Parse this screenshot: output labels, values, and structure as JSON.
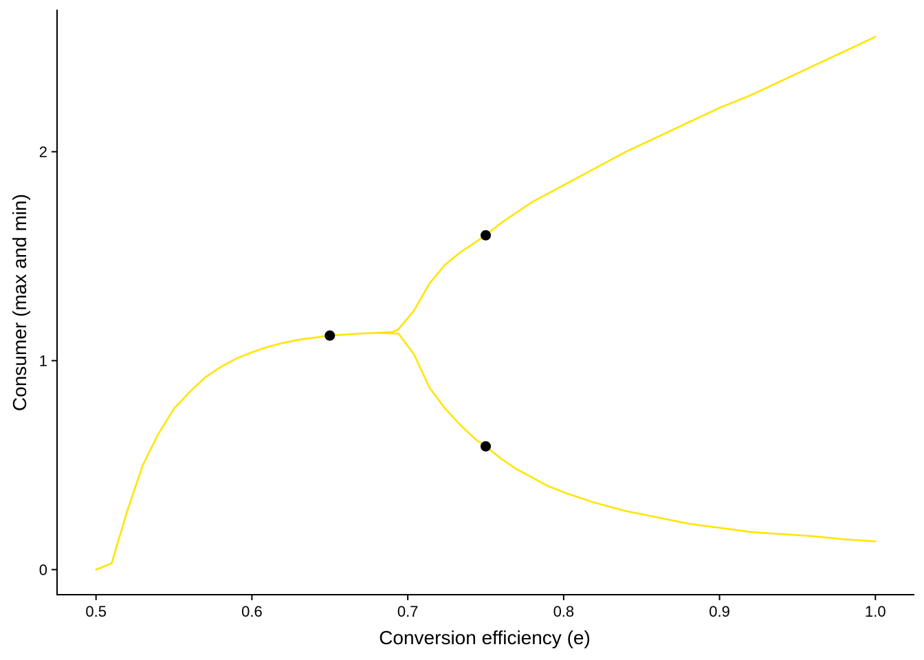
{
  "chart_data": {
    "type": "line",
    "title": "",
    "xlabel": "Conversion efficiency (e)",
    "ylabel": "Consumer (max and min)",
    "xlim": [
      0.475,
      1.025
    ],
    "ylim": [
      -0.12,
      2.68
    ],
    "xticks": [
      0.5,
      0.6,
      0.7,
      0.8,
      0.9,
      1.0
    ],
    "xtick_labels": [
      "0.5",
      "0.6",
      "0.7",
      "0.8",
      "0.9",
      "1.0"
    ],
    "yticks": [
      0,
      1,
      2
    ],
    "ytick_labels": [
      "0",
      "1",
      "2"
    ],
    "grid": false,
    "legend": "none",
    "line_color": "#FFE500",
    "point_color": "#000000",
    "series": [
      {
        "x": [
          0.5,
          0.51,
          0.52,
          0.53,
          0.54,
          0.55,
          0.56,
          0.57,
          0.58,
          0.59,
          0.6,
          0.61,
          0.62,
          0.63,
          0.64,
          0.65,
          0.66,
          0.67,
          0.68,
          0.69,
          0.694,
          0.704,
          0.714,
          0.724,
          0.734,
          0.744,
          0.75,
          0.76,
          0.77,
          0.78,
          0.79,
          0.8,
          0.82,
          0.84,
          0.86,
          0.88,
          0.9,
          0.92,
          0.94,
          0.96,
          0.98,
          1.0
        ],
        "values": [
          0.0,
          0.03,
          0.28,
          0.5,
          0.65,
          0.77,
          0.85,
          0.92,
          0.97,
          1.01,
          1.04,
          1.065,
          1.085,
          1.1,
          1.11,
          1.12,
          1.125,
          1.13,
          1.133,
          1.137,
          1.15,
          1.24,
          1.37,
          1.46,
          1.52,
          1.57,
          1.6,
          1.66,
          1.71,
          1.76,
          1.8,
          1.84,
          1.92,
          2.0,
          2.07,
          2.14,
          2.21,
          2.27,
          2.34,
          2.41,
          2.48,
          2.55
        ]
      },
      {
        "x": [
          0.68,
          0.69,
          0.694,
          0.704,
          0.714,
          0.724,
          0.734,
          0.744,
          0.75,
          0.76,
          0.77,
          0.78,
          0.79,
          0.8,
          0.82,
          0.84,
          0.86,
          0.88,
          0.9,
          0.92,
          0.94,
          0.96,
          0.98,
          1.0
        ],
        "values": [
          1.133,
          1.13,
          1.13,
          1.03,
          0.87,
          0.77,
          0.69,
          0.62,
          0.59,
          0.53,
          0.48,
          0.44,
          0.4,
          0.37,
          0.32,
          0.28,
          0.25,
          0.22,
          0.2,
          0.18,
          0.17,
          0.16,
          0.145,
          0.135
        ]
      }
    ],
    "points": [
      {
        "x": 0.65,
        "y": 1.12
      },
      {
        "x": 0.75,
        "y": 1.6
      },
      {
        "x": 0.75,
        "y": 0.59
      }
    ]
  }
}
